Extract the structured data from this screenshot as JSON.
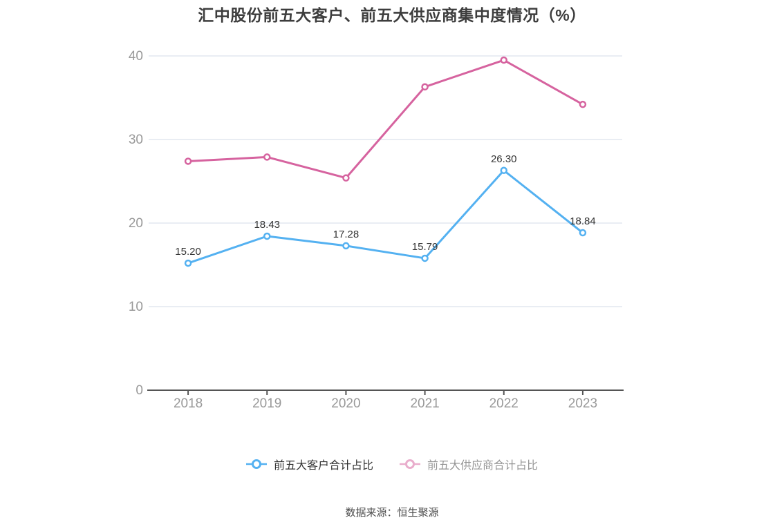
{
  "title": "汇中股份前五大客户、前五大供应商集中度情况（%）",
  "source": "数据来源：恒生聚源",
  "chart_data": {
    "type": "line",
    "title": "汇中股份前五大客户、前五大供应商集中度情况（%）",
    "categories": [
      "2018",
      "2019",
      "2020",
      "2021",
      "2022",
      "2023"
    ],
    "series": [
      {
        "name": "前五大客户合计占比",
        "color": "#54b1f1",
        "values": [
          15.2,
          18.43,
          17.28,
          15.79,
          26.3,
          18.84
        ],
        "data_labels": [
          "15.20",
          "18.43",
          "17.28",
          "15.79",
          "26.30",
          "18.84"
        ],
        "show_labels": true,
        "legend_faded": false
      },
      {
        "name": "前五大供应商合计占比",
        "color": "#d6639f",
        "values": [
          27.4,
          27.9,
          25.4,
          36.3,
          39.5,
          34.2
        ],
        "data_labels": [],
        "show_labels": false,
        "legend_faded": true
      }
    ],
    "xlabel": "",
    "ylabel": "",
    "ylim": [
      0,
      40
    ],
    "yticks": [
      0,
      10,
      20,
      30,
      40
    ],
    "grid": true,
    "legend_position": "bottom",
    "marker": "hollow-circle"
  },
  "styles": {
    "background": "#ffffff",
    "title_color": "#3d3d3d",
    "axis_label_color": "#999999",
    "data_label_color": "#333333",
    "grid_color": "#e9edf3",
    "axis_line_color": "#555555",
    "source_color": "#4d4d4d"
  }
}
